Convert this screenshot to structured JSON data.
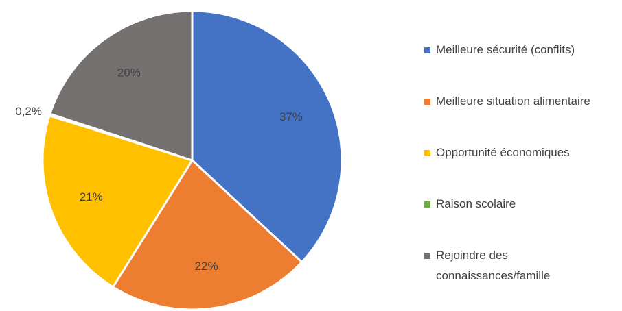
{
  "chart_data": {
    "type": "pie",
    "categories": [
      "Meilleure sécurité (conflits)",
      "Meilleure situation alimentaire",
      "Opportunité économiques",
      "Raison scolaire",
      "Rejoindre des connaissances/famille"
    ],
    "values": [
      37,
      22,
      21,
      0.2,
      20
    ],
    "value_labels": [
      "37%",
      "22%",
      "21%",
      "0,2%",
      "20%"
    ],
    "colors": [
      "#4472c4",
      "#ed7d31",
      "#ffc000",
      "#70ad47",
      "#767171"
    ],
    "legend": "right"
  }
}
